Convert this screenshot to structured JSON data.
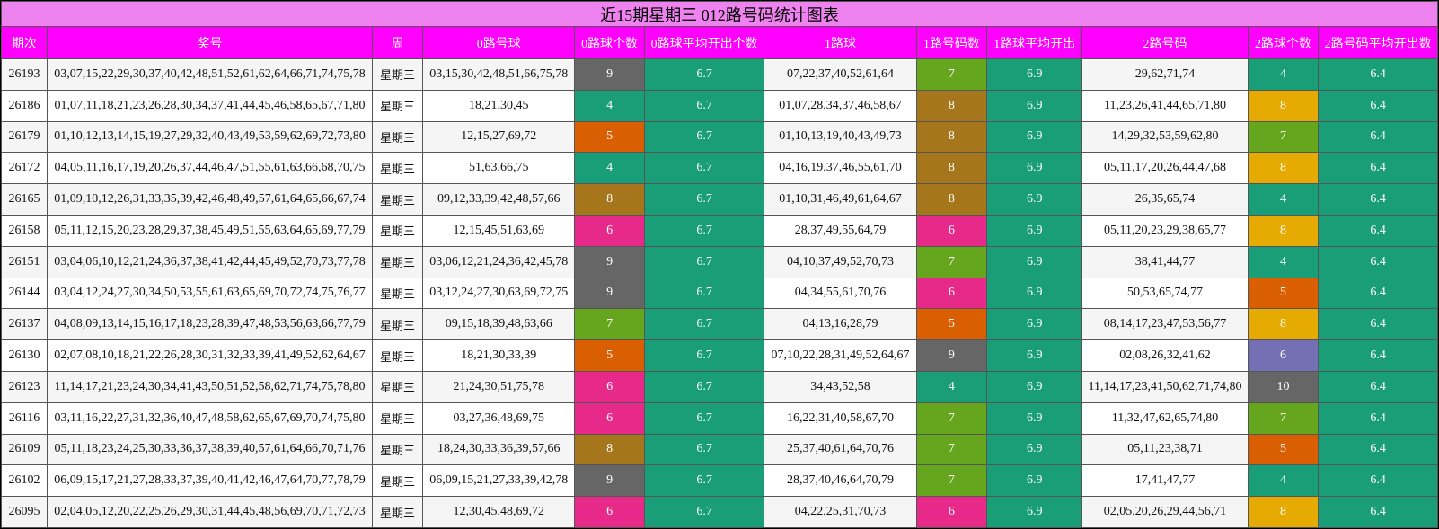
{
  "title": "近15期星期三 012路号码统计图表",
  "headers": [
    "期次",
    "奖号",
    "周",
    "0路号球",
    "0路球个数",
    "0路球平均开出个数",
    "1路球",
    "1路号码数",
    "1路球平均开出",
    "2路号码",
    "2路球个数",
    "2路号码平均开出数"
  ],
  "colors": {
    "title_bg": "#ee82ee",
    "header_bg": "#ff00ff",
    "avg_bg": "#1a9e77",
    "count_4": "#1a9e77",
    "count_5": "#d95f02",
    "count_6": "#e7298a",
    "count_7": "#66a61e",
    "count_8_brown": "#a6761d",
    "count_8_gold": "#e6ab02",
    "count_9": "#666666",
    "count_10": "#666666",
    "count_6_purple": "#7570b3"
  },
  "rows": [
    {
      "issue": "26193",
      "numbers": "03,07,15,22,29,30,37,40,42,48,51,52,61,62,64,66,71,74,75,78",
      "week": "星期三",
      "r0": "03,15,30,42,48,51,66,75,78",
      "c0": "9",
      "c0_color": "#666666",
      "a0": "6.7",
      "r1": "07,22,37,40,52,61,64",
      "c1": "7",
      "c1_color": "#66a61e",
      "a1": "6.9",
      "r2": "29,62,71,74",
      "c2": "4",
      "c2_color": "#1a9e77",
      "a2": "6.4"
    },
    {
      "issue": "26186",
      "numbers": "01,07,11,18,21,23,26,28,30,34,37,41,44,45,46,58,65,67,71,80",
      "week": "星期三",
      "r0": "18,21,30,45",
      "c0": "4",
      "c0_color": "#1a9e77",
      "a0": "6.7",
      "r1": "01,07,28,34,37,46,58,67",
      "c1": "8",
      "c1_color": "#a6761d",
      "a1": "6.9",
      "r2": "11,23,26,41,44,65,71,80",
      "c2": "8",
      "c2_color": "#e6ab02",
      "a2": "6.4"
    },
    {
      "issue": "26179",
      "numbers": "01,10,12,13,14,15,19,27,29,32,40,43,49,53,59,62,69,72,73,80",
      "week": "星期三",
      "r0": "12,15,27,69,72",
      "c0": "5",
      "c0_color": "#d95f02",
      "a0": "6.7",
      "r1": "01,10,13,19,40,43,49,73",
      "c1": "8",
      "c1_color": "#a6761d",
      "a1": "6.9",
      "r2": "14,29,32,53,59,62,80",
      "c2": "7",
      "c2_color": "#66a61e",
      "a2": "6.4"
    },
    {
      "issue": "26172",
      "numbers": "04,05,11,16,17,19,20,26,37,44,46,47,51,55,61,63,66,68,70,75",
      "week": "星期三",
      "r0": "51,63,66,75",
      "c0": "4",
      "c0_color": "#1a9e77",
      "a0": "6.7",
      "r1": "04,16,19,37,46,55,61,70",
      "c1": "8",
      "c1_color": "#a6761d",
      "a1": "6.9",
      "r2": "05,11,17,20,26,44,47,68",
      "c2": "8",
      "c2_color": "#e6ab02",
      "a2": "6.4"
    },
    {
      "issue": "26165",
      "numbers": "01,09,10,12,26,31,33,35,39,42,46,48,49,57,61,64,65,66,67,74",
      "week": "星期三",
      "r0": "09,12,33,39,42,48,57,66",
      "c0": "8",
      "c0_color": "#a6761d",
      "a0": "6.7",
      "r1": "01,10,31,46,49,61,64,67",
      "c1": "8",
      "c1_color": "#a6761d",
      "a1": "6.9",
      "r2": "26,35,65,74",
      "c2": "4",
      "c2_color": "#1a9e77",
      "a2": "6.4"
    },
    {
      "issue": "26158",
      "numbers": "05,11,12,15,20,23,28,29,37,38,45,49,51,55,63,64,65,69,77,79",
      "week": "星期三",
      "r0": "12,15,45,51,63,69",
      "c0": "6",
      "c0_color": "#e7298a",
      "a0": "6.7",
      "r1": "28,37,49,55,64,79",
      "c1": "6",
      "c1_color": "#e7298a",
      "a1": "6.9",
      "r2": "05,11,20,23,29,38,65,77",
      "c2": "8",
      "c2_color": "#e6ab02",
      "a2": "6.4"
    },
    {
      "issue": "26151",
      "numbers": "03,04,06,10,12,21,24,36,37,38,41,42,44,45,49,52,70,73,77,78",
      "week": "星期三",
      "r0": "03,06,12,21,24,36,42,45,78",
      "c0": "9",
      "c0_color": "#666666",
      "a0": "6.7",
      "r1": "04,10,37,49,52,70,73",
      "c1": "7",
      "c1_color": "#66a61e",
      "a1": "6.9",
      "r2": "38,41,44,77",
      "c2": "4",
      "c2_color": "#1a9e77",
      "a2": "6.4"
    },
    {
      "issue": "26144",
      "numbers": "03,04,12,24,27,30,34,50,53,55,61,63,65,69,70,72,74,75,76,77",
      "week": "星期三",
      "r0": "03,12,24,27,30,63,69,72,75",
      "c0": "9",
      "c0_color": "#666666",
      "a0": "6.7",
      "r1": "04,34,55,61,70,76",
      "c1": "6",
      "c1_color": "#e7298a",
      "a1": "6.9",
      "r2": "50,53,65,74,77",
      "c2": "5",
      "c2_color": "#d95f02",
      "a2": "6.4"
    },
    {
      "issue": "26137",
      "numbers": "04,08,09,13,14,15,16,17,18,23,28,39,47,48,53,56,63,66,77,79",
      "week": "星期三",
      "r0": "09,15,18,39,48,63,66",
      "c0": "7",
      "c0_color": "#66a61e",
      "a0": "6.7",
      "r1": "04,13,16,28,79",
      "c1": "5",
      "c1_color": "#d95f02",
      "a1": "6.9",
      "r2": "08,14,17,23,47,53,56,77",
      "c2": "8",
      "c2_color": "#e6ab02",
      "a2": "6.4"
    },
    {
      "issue": "26130",
      "numbers": "02,07,08,10,18,21,22,26,28,30,31,32,33,39,41,49,52,62,64,67",
      "week": "星期三",
      "r0": "18,21,30,33,39",
      "c0": "5",
      "c0_color": "#d95f02",
      "a0": "6.7",
      "r1": "07,10,22,28,31,49,52,64,67",
      "c1": "9",
      "c1_color": "#666666",
      "a1": "6.9",
      "r2": "02,08,26,32,41,62",
      "c2": "6",
      "c2_color": "#7570b3",
      "a2": "6.4"
    },
    {
      "issue": "26123",
      "numbers": "11,14,17,21,23,24,30,34,41,43,50,51,52,58,62,71,74,75,78,80",
      "week": "星期三",
      "r0": "21,24,30,51,75,78",
      "c0": "6",
      "c0_color": "#e7298a",
      "a0": "6.7",
      "r1": "34,43,52,58",
      "c1": "4",
      "c1_color": "#1a9e77",
      "a1": "6.9",
      "r2": "11,14,17,23,41,50,62,71,74,80",
      "c2": "10",
      "c2_color": "#666666",
      "a2": "6.4"
    },
    {
      "issue": "26116",
      "numbers": "03,11,16,22,27,31,32,36,40,47,48,58,62,65,67,69,70,74,75,80",
      "week": "星期三",
      "r0": "03,27,36,48,69,75",
      "c0": "6",
      "c0_color": "#e7298a",
      "a0": "6.7",
      "r1": "16,22,31,40,58,67,70",
      "c1": "7",
      "c1_color": "#66a61e",
      "a1": "6.9",
      "r2": "11,32,47,62,65,74,80",
      "c2": "7",
      "c2_color": "#66a61e",
      "a2": "6.4"
    },
    {
      "issue": "26109",
      "numbers": "05,11,18,23,24,25,30,33,36,37,38,39,40,57,61,64,66,70,71,76",
      "week": "星期三",
      "r0": "18,24,30,33,36,39,57,66",
      "c0": "8",
      "c0_color": "#a6761d",
      "a0": "6.7",
      "r1": "25,37,40,61,64,70,76",
      "c1": "7",
      "c1_color": "#66a61e",
      "a1": "6.9",
      "r2": "05,11,23,38,71",
      "c2": "5",
      "c2_color": "#d95f02",
      "a2": "6.4"
    },
    {
      "issue": "26102",
      "numbers": "06,09,15,17,21,27,28,33,37,39,40,41,42,46,47,64,70,77,78,79",
      "week": "星期三",
      "r0": "06,09,15,21,27,33,39,42,78",
      "c0": "9",
      "c0_color": "#666666",
      "a0": "6.7",
      "r1": "28,37,40,46,64,70,79",
      "c1": "7",
      "c1_color": "#66a61e",
      "a1": "6.9",
      "r2": "17,41,47,77",
      "c2": "4",
      "c2_color": "#1a9e77",
      "a2": "6.4"
    },
    {
      "issue": "26095",
      "numbers": "02,04,05,12,20,22,25,26,29,30,31,44,45,48,56,69,70,71,72,73",
      "week": "星期三",
      "r0": "12,30,45,48,69,72",
      "c0": "6",
      "c0_color": "#e7298a",
      "a0": "6.7",
      "r1": "04,22,25,31,70,73",
      "c1": "6",
      "c1_color": "#e7298a",
      "a1": "6.9",
      "r2": "02,05,20,26,29,44,56,71",
      "c2": "8",
      "c2_color": "#e6ab02",
      "a2": "6.4"
    }
  ]
}
